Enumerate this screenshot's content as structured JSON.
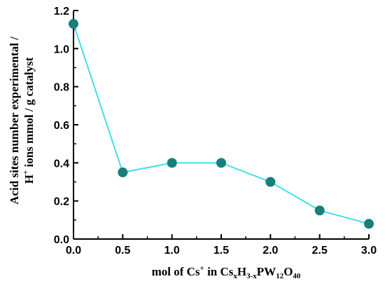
{
  "chart_data": {
    "type": "line",
    "x": [
      0.0,
      0.5,
      1.0,
      1.5,
      2.0,
      2.5,
      3.0
    ],
    "series": [
      {
        "values": [
          1.13,
          0.35,
          0.4,
          0.4,
          0.3,
          0.15,
          0.08
        ]
      }
    ],
    "xlim": [
      0.0,
      3.0
    ],
    "ylim": [
      0.0,
      1.2
    ],
    "x_ticks": [
      "0.0",
      "0.5",
      "1.0",
      "1.5",
      "2.0",
      "2.5",
      "3.0"
    ],
    "y_ticks": [
      "0.0",
      "0.2",
      "0.4",
      "0.6",
      "0.8",
      "1.0",
      "1.2"
    ],
    "xlabel": {
      "prefix": "mol of Cs",
      "prefix_sup": "+",
      "mid": " in Cs",
      "sub1": "x",
      "h": "H",
      "sub2": "3-x",
      "pw": "PW",
      "sub3": "12",
      "o": "O",
      "sub4": "40"
    },
    "ylabel": {
      "line1": "Acid sites number experimental /",
      "line2_h": "H",
      "line2_sup": "+",
      "line2_rest": " ions mmol / g catalyst"
    },
    "line_color": "#40E0E8",
    "marker_color": "#17807A",
    "grid": false
  }
}
